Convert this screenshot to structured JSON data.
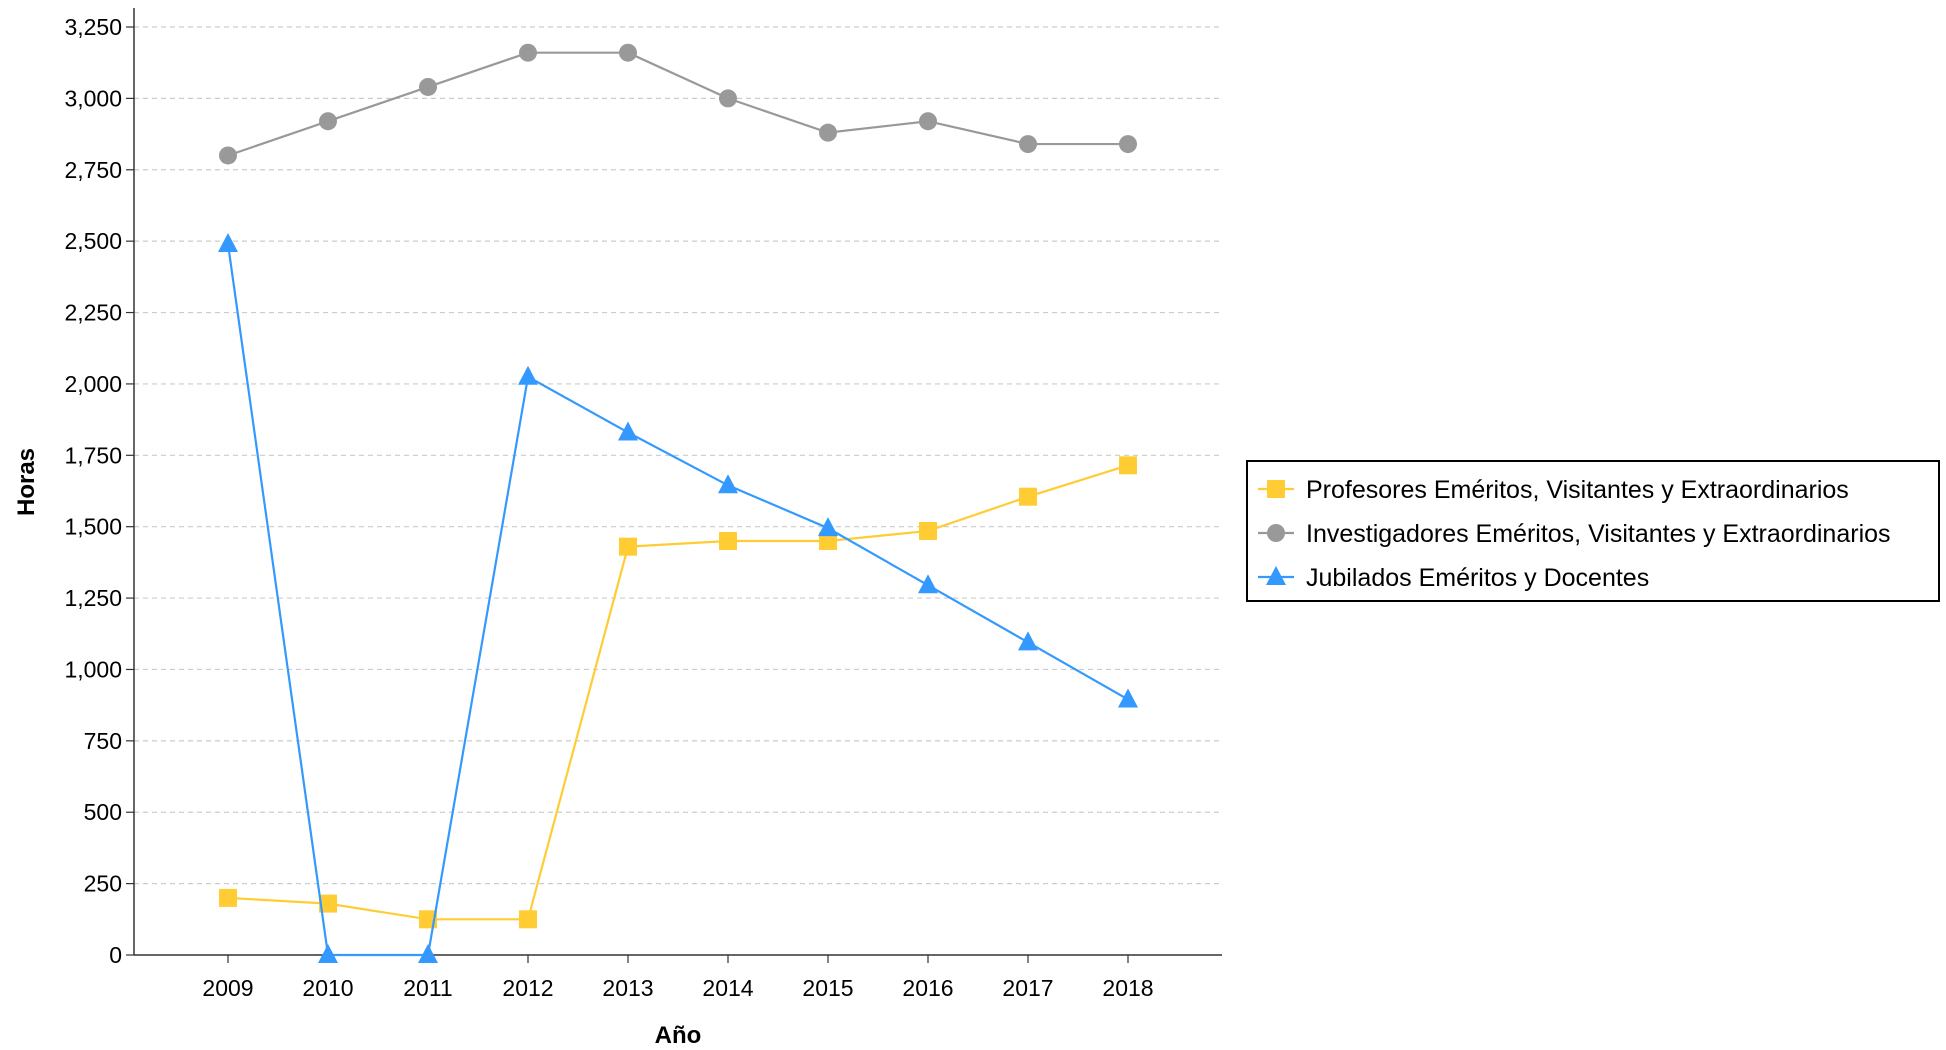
{
  "chart_data": {
    "type": "line",
    "xlabel": "Año",
    "ylabel": "Horas",
    "x": [
      "2009",
      "2010",
      "2011",
      "2012",
      "2013",
      "2014",
      "2015",
      "2016",
      "2017",
      "2018"
    ],
    "ylim": [
      0,
      3250
    ],
    "yticks": [
      0,
      250,
      500,
      750,
      1000,
      1250,
      1500,
      1750,
      2000,
      2250,
      2500,
      2750,
      3000,
      3250
    ],
    "ytick_labels": [
      "0",
      "250",
      "500",
      "750",
      "1,000",
      "1,250",
      "1,500",
      "1,750",
      "2,000",
      "2,250",
      "2,500",
      "2,750",
      "3,000",
      "3,250"
    ],
    "grid": true,
    "legend_position": "right",
    "series": [
      {
        "name": "Profesores Eméritos, Visitantes y Extraordinarios",
        "color": "#ffcc33",
        "marker": "square",
        "values": [
          200,
          180,
          125,
          125,
          1430,
          1450,
          1450,
          1485,
          1605,
          1715
        ]
      },
      {
        "name": "Investigadores Eméritos, Visitantes y Extraordinarios",
        "color": "#999999",
        "marker": "circle",
        "values": [
          2800,
          2920,
          3040,
          3160,
          3160,
          3000,
          2880,
          2920,
          2840,
          2840
        ]
      },
      {
        "name": "Jubilados Eméritos y Docentes",
        "color": "#3399ff",
        "marker": "triangle",
        "values": [
          2490,
          0,
          0,
          2025,
          1830,
          1645,
          1495,
          1295,
          1095,
          895
        ]
      }
    ]
  }
}
